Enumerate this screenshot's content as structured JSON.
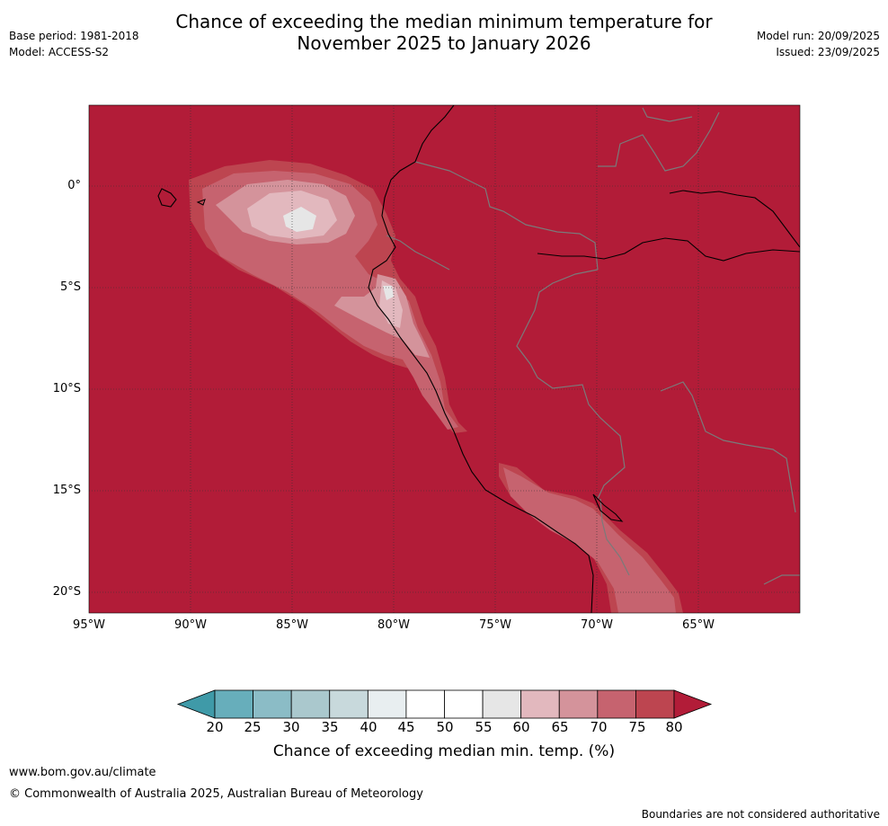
{
  "header": {
    "title_line1": "Chance of exceeding the median minimum temperature for",
    "title_line2": "November 2025 to January 2026",
    "base_period": "Base period: 1981-2018",
    "model": "Model: ACCESS-S2",
    "model_run": "Model run: 20/09/2025",
    "issued": "Issued: 23/09/2025"
  },
  "map": {
    "lat_labels": [
      "0°",
      "5°S",
      "10°S",
      "15°S",
      "20°S"
    ],
    "lon_labels": [
      "95°W",
      "90°W",
      "85°W",
      "80°W",
      "75°W",
      "70°W",
      "65°W"
    ],
    "background_class_color": "#b21c38"
  },
  "colorbar": {
    "ticks": [
      "20",
      "25",
      "30",
      "35",
      "40",
      "45",
      "50",
      "55",
      "60",
      "65",
      "70",
      "75",
      "80"
    ],
    "colors": [
      "#3f9aa8",
      "#67aebb",
      "#8bbcc6",
      "#aac8cd",
      "#c8d9dc",
      "#e8eef0",
      "#ffffff",
      "#ffffff",
      "#e6e6e6",
      "#e2b8be",
      "#d4939b",
      "#c6636f",
      "#bd4550",
      "#b21c38"
    ],
    "label": "Chance of exceeding median min. temp. (%)"
  },
  "footer": {
    "website": "www.bom.gov.au/climate",
    "copyright": "© Commonwealth of Australia 2025, Australian Bureau of Meteorology",
    "note": "Boundaries are not considered authoritative"
  }
}
